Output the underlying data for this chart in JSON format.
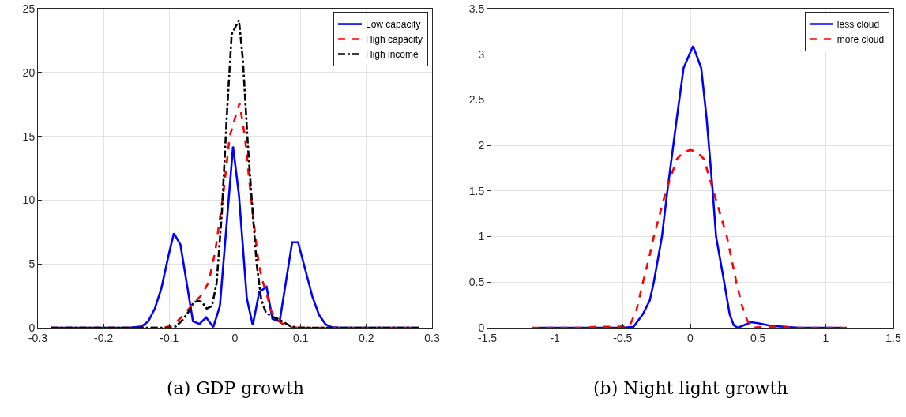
{
  "chart_data": [
    {
      "type": "line",
      "annotations": [
        "(a) GDP growth"
      ],
      "xlim": [
        -0.3,
        0.3
      ],
      "xticks": [
        -0.3,
        -0.2,
        -0.1,
        0,
        0.1,
        0.2,
        0.3
      ],
      "ylim": [
        0,
        25
      ],
      "yticks": [
        0,
        5,
        10,
        15,
        20,
        25
      ],
      "grid": true,
      "legend": "top right",
      "series": [
        {
          "name": "Low capacity",
          "color": "#0000ff",
          "line_style": "solid",
          "x": [
            -0.28,
            -0.16,
            -0.142,
            -0.132,
            -0.122,
            -0.112,
            -0.101,
            -0.093,
            -0.083,
            -0.064,
            -0.054,
            -0.044,
            -0.033,
            -0.023,
            -0.003,
            0.006,
            0.018,
            0.027,
            0.037,
            0.048,
            0.057,
            0.068,
            0.087,
            0.096,
            0.118,
            0.128,
            0.138,
            0.147,
            0.16,
            0.28
          ],
          "values": [
            0,
            0,
            0.1,
            0.5,
            1.5,
            3.1,
            5.7,
            7.4,
            6.5,
            0.5,
            0.3,
            0.8,
            0.05,
            1.7,
            14.2,
            10.4,
            2.3,
            0.2,
            2.8,
            3.2,
            0.7,
            0.5,
            6.7,
            6.7,
            2.4,
            1,
            0.25,
            0.05,
            0,
            0
          ]
        },
        {
          "name": "High capacity",
          "color": "#ff0000",
          "line_style": "dashed",
          "x": [
            -0.28,
            -0.11,
            -0.1,
            -0.09,
            -0.08,
            -0.07,
            -0.06,
            -0.05,
            -0.04,
            -0.03,
            -0.018,
            -0.008,
            0.001,
            0.007,
            0.015,
            0.024,
            0.034,
            0.04,
            0.049,
            0.055,
            0.065,
            0.075,
            0.085,
            0.1,
            0.28
          ],
          "values": [
            0,
            0,
            0.1,
            0.4,
            0.9,
            1.5,
            2.1,
            2.6,
            3.6,
            6,
            10.4,
            15,
            16.6,
            17.6,
            15,
            10.4,
            5.8,
            4,
            2.5,
            1.3,
            0.6,
            0.2,
            0.05,
            0,
            0
          ]
        },
        {
          "name": "High income",
          "color": "#000000",
          "line_style": "dashdot",
          "x": [
            -0.28,
            -0.1,
            -0.09,
            -0.08,
            -0.07,
            -0.063,
            -0.055,
            -0.05,
            -0.043,
            -0.035,
            -0.028,
            -0.02,
            -0.012,
            -0.005,
            0.006,
            0.012,
            0.02,
            0.027,
            0.033,
            0.04,
            0.047,
            0.055,
            0.065,
            0.075,
            0.085,
            0.095,
            0.11,
            0.28
          ],
          "values": [
            0,
            0,
            0.1,
            0.6,
            1.3,
            2,
            2.1,
            2,
            1.5,
            1.7,
            3.5,
            9,
            17,
            23,
            24.1,
            21,
            14,
            9,
            5,
            2.2,
            1.2,
            0.9,
            0.7,
            0.4,
            0.1,
            0.02,
            0,
            0
          ]
        }
      ]
    },
    {
      "type": "line",
      "annotations": [
        "(b) Night light growth"
      ],
      "xlim": [
        -1.5,
        1.5
      ],
      "xticks": [
        -1.5,
        -1,
        -0.5,
        0,
        0.5,
        1,
        1.5
      ],
      "ylim": [
        0,
        3.5
      ],
      "yticks": [
        0,
        0.5,
        1,
        1.5,
        2,
        2.5,
        3,
        3.5
      ],
      "grid": true,
      "legend": "top right",
      "series": [
        {
          "name": "less cloud",
          "color": "#0000ff",
          "line_style": "solid",
          "x": [
            -1.12,
            -0.5,
            -0.42,
            -0.35,
            -0.3,
            -0.27,
            -0.21,
            -0.17,
            -0.1,
            -0.05,
            0.02,
            0.08,
            0.12,
            0.165,
            0.19,
            0.25,
            0.29,
            0.32,
            0.35,
            0.4,
            0.45,
            0.5,
            0.6,
            0.7,
            0.8,
            1.12
          ],
          "values": [
            0,
            0,
            0.01,
            0.15,
            0.3,
            0.5,
            1,
            1.5,
            2.3,
            2.85,
            3.09,
            2.85,
            2.3,
            1.5,
            1,
            0.5,
            0.15,
            0.03,
            0,
            0.03,
            0.06,
            0.05,
            0.02,
            0.01,
            0,
            0
          ]
        },
        {
          "name": "more cloud",
          "color": "#ff0000",
          "line_style": "dashed",
          "x": [
            -1.17,
            -0.8,
            -0.7,
            -0.55,
            -0.45,
            -0.4,
            -0.35,
            -0.3,
            -0.27,
            -0.18,
            -0.1,
            -0.05,
            0,
            0.05,
            0.1,
            0.17,
            0.22,
            0.27,
            0.34,
            0.38,
            0.42,
            0.46,
            0.55,
            0.65,
            0.8,
            1.17
          ],
          "values": [
            0,
            0,
            0.01,
            0.01,
            0.02,
            0.18,
            0.5,
            0.8,
            1,
            1.5,
            1.85,
            1.93,
            1.95,
            1.93,
            1.85,
            1.5,
            1.25,
            1,
            0.5,
            0.25,
            0.08,
            0,
            0.01,
            0.01,
            0,
            0
          ]
        }
      ]
    }
  ]
}
